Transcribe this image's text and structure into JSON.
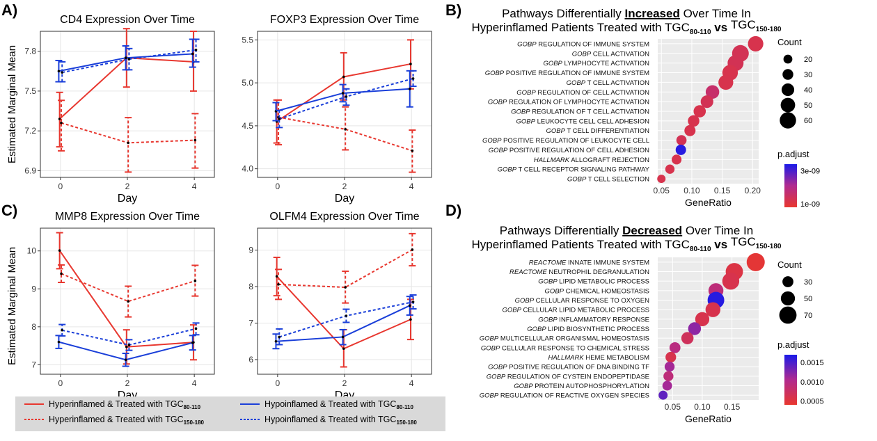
{
  "panel_labels": [
    "A)",
    "B)",
    "C)",
    "D)"
  ],
  "shared": {
    "y_axis_label": "Estimated Marginal Mean",
    "x_axis_label": "Day",
    "legend": [
      {
        "text": "Hyperinflamed & Treated with TGC",
        "sub": "80-110",
        "color": "#e8372f",
        "dash": false
      },
      {
        "text": "Hyperinflamed & Treated with TGC",
        "sub": "150-180",
        "color": "#e8372f",
        "dash": true
      },
      {
        "text": "Hypoinflamed & Treated with TGC",
        "sub": "80-110",
        "color": "#1a3fd9",
        "dash": false
      },
      {
        "text": "Hypoinflamed & Treated with TGC",
        "sub": "150-180",
        "color": "#1a3fd9",
        "dash": true
      }
    ]
  },
  "chart_data": [
    {
      "type": "line",
      "title": "CD4 Expression Over Time",
      "xlabel": "Day",
      "ylabel": "Estimated Marginal Mean",
      "x": [
        0,
        2,
        4
      ],
      "xticks": [
        "0",
        "2",
        "4"
      ],
      "ylim": [
        6.85,
        7.95
      ],
      "yticks": [
        "6.9",
        "7.2",
        "7.5",
        "7.8"
      ],
      "ytick_values": [
        6.9,
        7.2,
        7.5,
        7.8
      ],
      "series": [
        {
          "values": [
            7.29,
            7.75,
            7.72
          ],
          "lower": [
            7.08,
            7.53,
            7.5
          ],
          "upper": [
            7.49,
            7.97,
            7.95
          ],
          "color": "#e8372f",
          "dash": false
        },
        {
          "values": [
            7.26,
            7.11,
            7.13
          ],
          "lower": [
            7.05,
            6.89,
            6.92
          ],
          "upper": [
            7.43,
            7.3,
            7.33
          ],
          "color": "#e8372f",
          "dash": true
        },
        {
          "values": [
            7.65,
            7.75,
            7.78
          ],
          "lower": [
            7.57,
            7.66,
            7.68
          ],
          "upper": [
            7.73,
            7.84,
            7.89
          ],
          "color": "#1a3fd9",
          "dash": false
        },
        {
          "values": [
            7.64,
            7.74,
            7.81
          ],
          "lower": [
            7.57,
            7.66,
            7.72
          ],
          "upper": [
            7.72,
            7.82,
            7.89
          ],
          "color": "#1a3fd9",
          "dash": true
        }
      ]
    },
    {
      "type": "line",
      "title": "FOXP3 Expression Over Time",
      "xlabel": "Day",
      "x": [
        0,
        2,
        4
      ],
      "xticks": [
        "0",
        "2",
        "4"
      ],
      "ylim": [
        3.9,
        5.6
      ],
      "yticks": [
        "4.0",
        "4.5",
        "5.0",
        "5.5"
      ],
      "ytick_values": [
        4.0,
        4.5,
        5.0,
        5.5
      ],
      "series": [
        {
          "values": [
            4.55,
            5.07,
            5.22
          ],
          "lower": [
            4.3,
            4.8,
            4.93
          ],
          "upper": [
            4.8,
            5.35,
            5.5
          ],
          "color": "#e8372f",
          "dash": false
        },
        {
          "values": [
            4.6,
            4.46,
            4.21
          ],
          "lower": [
            4.28,
            4.22,
            3.96
          ],
          "upper": [
            4.8,
            4.72,
            4.45
          ],
          "color": "#e8372f",
          "dash": true
        },
        {
          "values": [
            4.67,
            4.88,
            4.93
          ],
          "lower": [
            4.56,
            4.78,
            4.72
          ],
          "upper": [
            4.77,
            4.98,
            5.14
          ],
          "color": "#1a3fd9",
          "dash": false
        },
        {
          "values": [
            4.58,
            4.84,
            5.05
          ],
          "lower": [
            4.48,
            4.74,
            4.96
          ],
          "upper": [
            4.68,
            4.93,
            5.14
          ],
          "color": "#1a3fd9",
          "dash": true
        }
      ]
    },
    {
      "type": "line",
      "title": "MMP8 Expression Over Time",
      "xlabel": "Day",
      "ylabel": "Estimated Marginal Mean",
      "x": [
        0,
        2,
        4
      ],
      "xticks": [
        "0",
        "2",
        "4"
      ],
      "ylim": [
        6.75,
        10.6
      ],
      "yticks": [
        "7",
        "8",
        "9",
        "10"
      ],
      "ytick_values": [
        7,
        8,
        9,
        10
      ],
      "series": [
        {
          "values": [
            10.01,
            7.47,
            7.59
          ],
          "lower": [
            9.53,
            7.02,
            7.13
          ],
          "upper": [
            10.48,
            7.92,
            8.05
          ],
          "color": "#e8372f",
          "dash": false
        },
        {
          "values": [
            9.4,
            8.67,
            9.21
          ],
          "lower": [
            9.17,
            8.26,
            8.81
          ],
          "upper": [
            9.63,
            9.07,
            9.62
          ],
          "color": "#e8372f",
          "dash": true
        },
        {
          "values": [
            7.6,
            7.13,
            7.58
          ],
          "lower": [
            7.43,
            6.96,
            7.39
          ],
          "upper": [
            7.77,
            7.3,
            7.77
          ],
          "color": "#1a3fd9",
          "dash": false
        },
        {
          "values": [
            7.91,
            7.52,
            7.95
          ],
          "lower": [
            7.76,
            7.38,
            7.79
          ],
          "upper": [
            8.06,
            7.66,
            8.1
          ],
          "color": "#1a3fd9",
          "dash": true
        }
      ]
    },
    {
      "type": "line",
      "title": "OLFM4 Expression Over Time",
      "xlabel": "Day",
      "x": [
        0,
        2,
        4
      ],
      "xticks": [
        "0",
        "2",
        "4"
      ],
      "ylim": [
        5.6,
        9.6
      ],
      "yticks": [
        "6",
        "7",
        "8",
        "9"
      ],
      "ytick_values": [
        6,
        7,
        8,
        9
      ],
      "series": [
        {
          "values": [
            8.28,
            6.3,
            7.1
          ],
          "lower": [
            7.75,
            5.8,
            6.55
          ],
          "upper": [
            8.8,
            6.82,
            7.65
          ],
          "color": "#e8372f",
          "dash": false
        },
        {
          "values": [
            8.06,
            7.98,
            9.01
          ],
          "lower": [
            7.65,
            7.55,
            8.57
          ],
          "upper": [
            8.47,
            8.42,
            9.45
          ],
          "color": "#e8372f",
          "dash": true
        },
        {
          "values": [
            6.5,
            6.62,
            7.48
          ],
          "lower": [
            6.3,
            6.41,
            7.22
          ],
          "upper": [
            6.7,
            6.82,
            7.73
          ],
          "color": "#1a3fd9",
          "dash": false
        },
        {
          "values": [
            6.62,
            7.2,
            7.58
          ],
          "lower": [
            6.41,
            7.02,
            7.39
          ],
          "upper": [
            6.84,
            7.38,
            7.77
          ],
          "color": "#1a3fd9",
          "dash": true
        }
      ]
    },
    {
      "type": "scatter",
      "title_parts": [
        "Pathways Differentially ",
        "Increased",
        " Over Time In"
      ],
      "title_line2": [
        "Hyperinflamed Patients Treated with TGC",
        "80-110",
        " vs ",
        "TGC",
        "150-180"
      ],
      "xlabel": "GeneRatio",
      "xlim": [
        0.044,
        0.21
      ],
      "xticks": [
        "0.05",
        "0.10",
        "0.15",
        "0.20"
      ],
      "xtick_values": [
        0.05,
        0.1,
        0.15,
        0.2
      ],
      "categories": [
        {
          "prefix": "GOBP",
          "label": "REGULATION OF IMMUNE SYSTEM"
        },
        {
          "prefix": "GOBP",
          "label": " CELL ACTIVATION"
        },
        {
          "prefix": "GOBP",
          "label": "LYMPHOCYTE ACTIVATION"
        },
        {
          "prefix": "GOBP",
          "label": "POSITIVE REGULATION OF IMMUNE SYSTEM"
        },
        {
          "prefix": "GOBP",
          "label": "T CELL ACTIVATION"
        },
        {
          "prefix": "GOBP",
          "label": "REGULATION OF CELL ACTIVATION"
        },
        {
          "prefix": "GOBP",
          "label": "REGULATION OF LYMPHOCYTE ACTIVATION"
        },
        {
          "prefix": "GOBP",
          "label": "REGULATION OF T CELL ACTIVATION"
        },
        {
          "prefix": "GOBP",
          "label": "LEUKOCYTE CELL CELL ADHESION"
        },
        {
          "prefix": "GOBP",
          "label": "T CELL DIFFERENTIATION"
        },
        {
          "prefix": "GOBP",
          "label": "POSITIVE REGULATION OF LEUKOCYTE CELL"
        },
        {
          "prefix": "GOBP",
          "label": "POSITIVE REGULATION OF CELL ADHESION"
        },
        {
          "prefix": "HALLMARK",
          "label": "ALLOGRAFT REJECTION"
        },
        {
          "prefix": "GOBP",
          "label": "T CELL RECEPTOR SIGNALING PATHWAY"
        },
        {
          "prefix": "GOBP",
          "label": "T CELL SELECTION"
        }
      ],
      "points": [
        {
          "x": 0.205,
          "count": 55,
          "p": 1.2e-09
        },
        {
          "x": 0.18,
          "count": 62,
          "p": 1.3e-09
        },
        {
          "x": 0.172,
          "count": 58,
          "p": 1.3e-09
        },
        {
          "x": 0.163,
          "count": 56,
          "p": 1.2e-09
        },
        {
          "x": 0.156,
          "count": 52,
          "p": 1.2e-09
        },
        {
          "x": 0.134,
          "count": 45,
          "p": 1.6e-09
        },
        {
          "x": 0.125,
          "count": 40,
          "p": 1.3e-09
        },
        {
          "x": 0.113,
          "count": 38,
          "p": 1.2e-09
        },
        {
          "x": 0.103,
          "count": 34,
          "p": 1.2e-09
        },
        {
          "x": 0.097,
          "count": 32,
          "p": 1.2e-09
        },
        {
          "x": 0.083,
          "count": 27,
          "p": 1.3e-09
        },
        {
          "x": 0.082,
          "count": 28,
          "p": 3.3e-09
        },
        {
          "x": 0.075,
          "count": 25,
          "p": 1.2e-09
        },
        {
          "x": 0.064,
          "count": 22,
          "p": 1.2e-09
        },
        {
          "x": 0.05,
          "count": 17,
          "p": 1.2e-09
        }
      ],
      "size_legend_title": "Count",
      "size_legend": [
        {
          "label": "20",
          "value": 20
        },
        {
          "label": "30",
          "value": 30
        },
        {
          "label": "40",
          "value": 40
        },
        {
          "label": "50",
          "value": 50
        },
        {
          "label": "60",
          "value": 60
        }
      ],
      "color_legend_title": "p.adjust",
      "color_range": [
        8e-10,
        3.4e-09
      ],
      "color_ticks": [
        {
          "label": "3e-09",
          "value": 3e-09
        },
        {
          "label": "1e-09",
          "value": 1e-09
        }
      ],
      "color_low": "#e8372f",
      "color_high": "#1a1ae8"
    },
    {
      "type": "scatter",
      "title_parts": [
        "Pathways Differentially ",
        "Decreased",
        " Over Time In"
      ],
      "title_line2": [
        "Hyperinflamed Patients Treated with TGC",
        "80-110",
        " vs ",
        "TGC",
        "150-180"
      ],
      "xlabel": "GeneRatio",
      "xlim": [
        0.025,
        0.195
      ],
      "xticks": [
        "0.05",
        "0.10",
        "0.15"
      ],
      "xtick_values": [
        0.05,
        0.1,
        0.15
      ],
      "categories": [
        {
          "prefix": "REACTOME",
          "label": "INNATE IMMUNE SYSTEM"
        },
        {
          "prefix": "REACTOME",
          "label": "NEUTROPHIL DEGRANULATION"
        },
        {
          "prefix": "GOBP",
          "label": "LIPID METABOLIC PROCESS"
        },
        {
          "prefix": "GOBP",
          "label": "CHEMICAL HOMEOSTASIS"
        },
        {
          "prefix": "GOBP",
          "label": "CELLULAR RESPONSE TO OXYGEN"
        },
        {
          "prefix": "GOBP",
          "label": "CELLULAR LIPID METABOLIC PROCESS"
        },
        {
          "prefix": "GOBP",
          "label": "INFLAMMATORY RESPONSE"
        },
        {
          "prefix": "GOBP",
          "label": "LIPID BIOSYNTHETIC PROCESS"
        },
        {
          "prefix": "GOBP",
          "label": "MULTICELLULAR ORGANISMAL HOMEOSTASIS"
        },
        {
          "prefix": "GOBP",
          "label": "CELLULAR RESPONSE TO CHEMICAL STRESS"
        },
        {
          "prefix": "HALLMARK",
          "label": "HEME METABOLISM"
        },
        {
          "prefix": "GOBP",
          "label": "POSITIVE REGULATION OF DNA BINDING TF"
        },
        {
          "prefix": "GOBP",
          "label": "REGULATION OF CYSTEIN ENDOPEPTIDASE"
        },
        {
          "prefix": "GOBP",
          "label": "PROTEIN AUTOPHOSPHORYLATION"
        },
        {
          "prefix": "GOBP",
          "label": "REGULATION OF REACTIVE OXYGEN SPECIES"
        }
      ],
      "points": [
        {
          "x": 0.19,
          "count": 75,
          "p": 0.00045
        },
        {
          "x": 0.154,
          "count": 70,
          "p": 0.00055
        },
        {
          "x": 0.148,
          "count": 68,
          "p": 0.0006
        },
        {
          "x": 0.123,
          "count": 55,
          "p": 0.0009
        },
        {
          "x": 0.123,
          "count": 66,
          "p": 0.00165
        },
        {
          "x": 0.118,
          "count": 55,
          "p": 0.0006
        },
        {
          "x": 0.1,
          "count": 50,
          "p": 0.0006
        },
        {
          "x": 0.087,
          "count": 42,
          "p": 0.0012
        },
        {
          "x": 0.075,
          "count": 38,
          "p": 0.0007
        },
        {
          "x": 0.054,
          "count": 30,
          "p": 0.00095
        },
        {
          "x": 0.047,
          "count": 28,
          "p": 0.0006
        },
        {
          "x": 0.045,
          "count": 24,
          "p": 0.0011
        },
        {
          "x": 0.043,
          "count": 24,
          "p": 0.0009
        },
        {
          "x": 0.041,
          "count": 22,
          "p": 0.0011
        },
        {
          "x": 0.034,
          "count": 18,
          "p": 0.0014
        }
      ],
      "size_legend_title": "Count",
      "size_legend": [
        {
          "label": "30",
          "value": 30
        },
        {
          "label": "50",
          "value": 50
        },
        {
          "label": "70",
          "value": 70
        }
      ],
      "color_legend_title": "p.adjust",
      "color_range": [
        0.0004,
        0.0017
      ],
      "color_ticks": [
        {
          "label": "0.0015",
          "value": 0.0015
        },
        {
          "label": "0.0010",
          "value": 0.001
        },
        {
          "label": "0.0005",
          "value": 0.0005
        }
      ],
      "color_low": "#e8372f",
      "color_high": "#1a1ae8"
    }
  ]
}
